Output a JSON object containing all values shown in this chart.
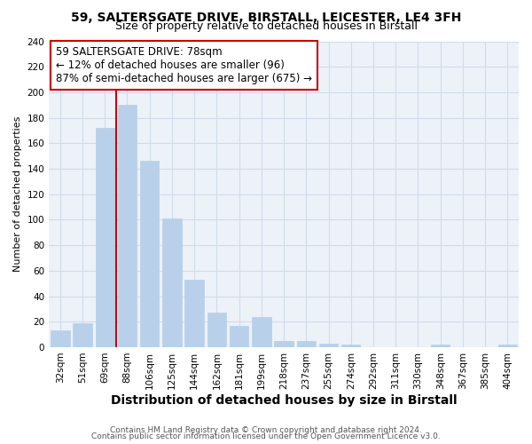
{
  "title1": "59, SALTERSGATE DRIVE, BIRSTALL, LEICESTER, LE4 3FH",
  "title2": "Size of property relative to detached houses in Birstall",
  "xlabel": "Distribution of detached houses by size in Birstall",
  "ylabel": "Number of detached properties",
  "categories": [
    "32sqm",
    "51sqm",
    "69sqm",
    "88sqm",
    "106sqm",
    "125sqm",
    "144sqm",
    "162sqm",
    "181sqm",
    "199sqm",
    "218sqm",
    "237sqm",
    "255sqm",
    "274sqm",
    "292sqm",
    "311sqm",
    "330sqm",
    "348sqm",
    "367sqm",
    "385sqm",
    "404sqm"
  ],
  "values": [
    13,
    19,
    172,
    190,
    146,
    101,
    53,
    27,
    17,
    24,
    5,
    5,
    3,
    2,
    0,
    0,
    0,
    2,
    0,
    0,
    2
  ],
  "bar_color": "#b8d0ea",
  "bar_edge_color": "#b8d0ea",
  "bar_width": 0.85,
  "red_line_x": 2.5,
  "annotation_line1": "59 SALTERSGATE DRIVE: 78sqm",
  "annotation_line2": "← 12% of detached houses are smaller (96)",
  "annotation_line3": "87% of semi-detached houses are larger (675) →",
  "annotation_box_color": "#ffffff",
  "annotation_box_edge_color": "#cc0000",
  "red_line_color": "#cc0000",
  "grid_color": "#d0dce8",
  "background_color": "#edf2f9",
  "ylim": [
    0,
    240
  ],
  "yticks": [
    0,
    20,
    40,
    60,
    80,
    100,
    120,
    140,
    160,
    180,
    200,
    220,
    240
  ],
  "footer1": "Contains HM Land Registry data © Crown copyright and database right 2024.",
  "footer2": "Contains public sector information licensed under the Open Government Licence v3.0.",
  "title1_fontsize": 10,
  "title2_fontsize": 9,
  "xlabel_fontsize": 10,
  "ylabel_fontsize": 8,
  "tick_fontsize": 7.5,
  "annotation_fontsize": 8.5,
  "footer_fontsize": 6.5
}
